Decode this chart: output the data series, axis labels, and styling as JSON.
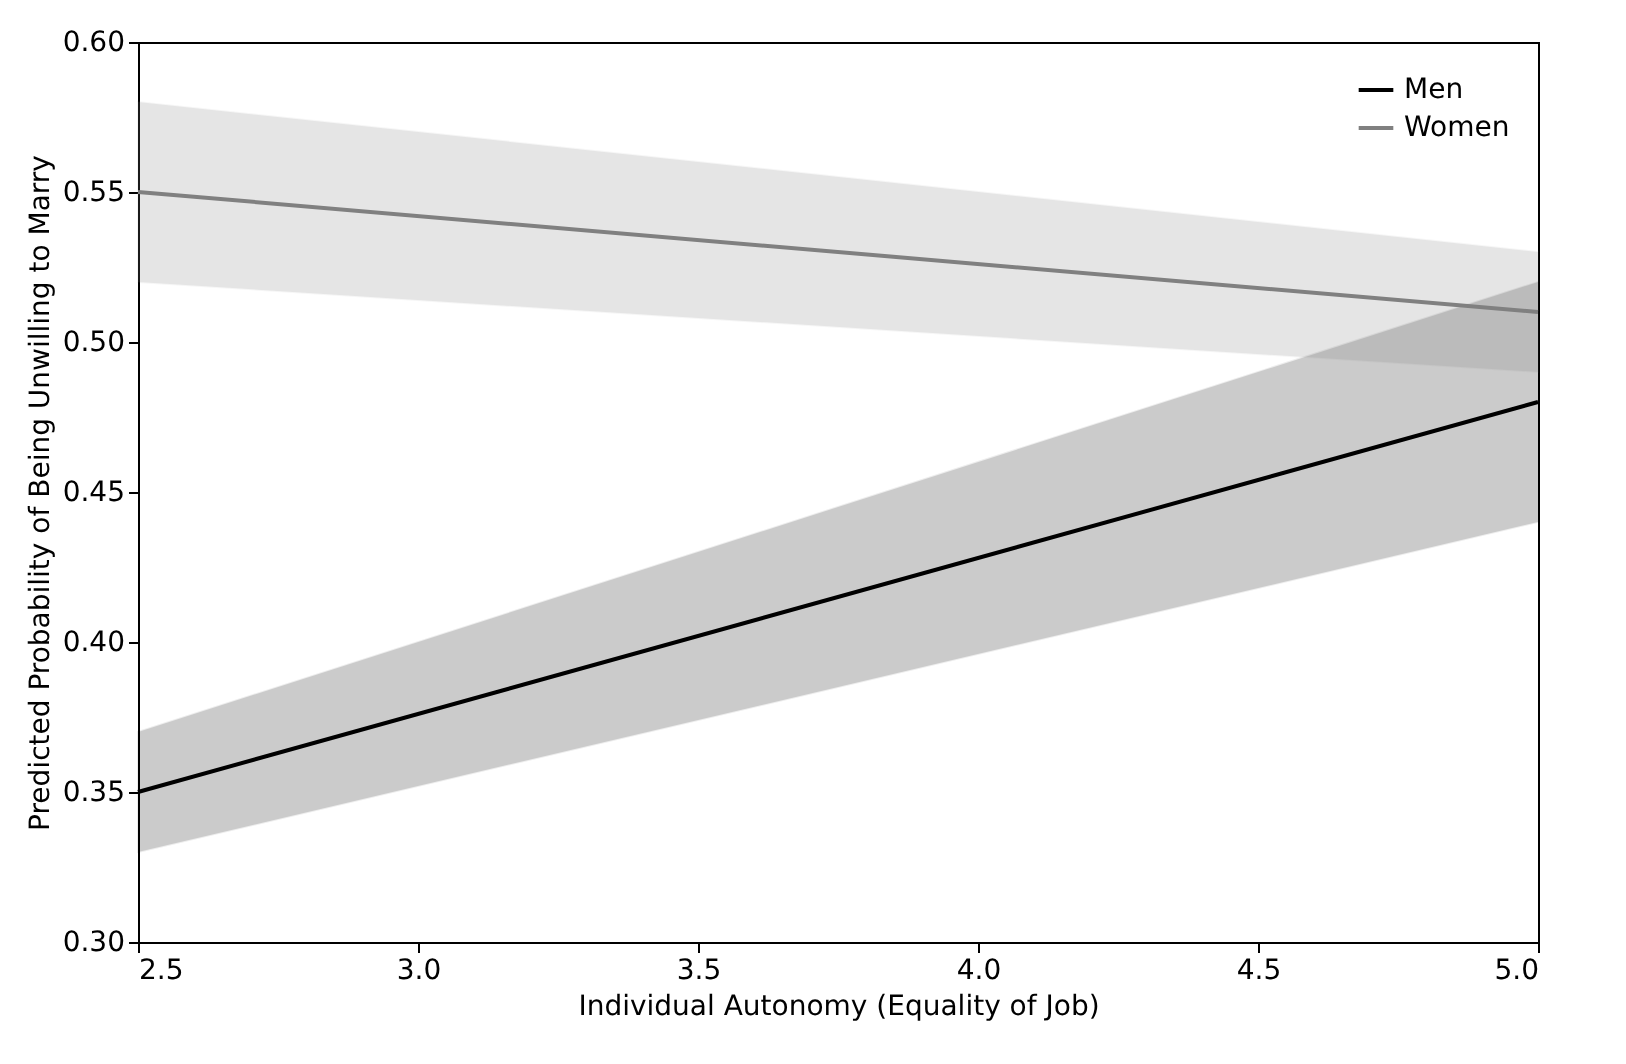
{
  "chart_data": {
    "type": "line",
    "xlabel": "Individual Autonomy (Equality of Job)",
    "ylabel": "Predicted Probability of Being Unwilling to Marry",
    "x": [
      2.5,
      5.0
    ],
    "series": [
      {
        "name": "Men",
        "color": "#000000",
        "values": [
          0.35,
          0.48
        ],
        "lower": [
          0.33,
          0.44
        ],
        "upper": [
          0.37,
          0.52
        ]
      },
      {
        "name": "Women",
        "color": "#808080",
        "values": [
          0.55,
          0.51
        ],
        "lower": [
          0.52,
          0.49
        ],
        "upper": [
          0.58,
          0.53
        ]
      }
    ],
    "xlim": [
      2.5,
      5.0
    ],
    "ylim": [
      0.3,
      0.6
    ],
    "xticks": [
      {
        "value": 2.5,
        "label": "2.5"
      },
      {
        "value": 3,
        "label": "3.0"
      },
      {
        "value": 3.5,
        "label": "3.5"
      },
      {
        "value": 4,
        "label": "4.0"
      },
      {
        "value": 4.5,
        "label": "4.5"
      },
      {
        "value": 5,
        "label": "5.0"
      }
    ],
    "yticks": [
      {
        "value": 0.3,
        "label": "0.30"
      },
      {
        "value": 0.35,
        "label": "0.35"
      },
      {
        "value": 0.4,
        "label": "0.40"
      },
      {
        "value": 0.45,
        "label": "0.45"
      },
      {
        "value": 0.5,
        "label": "0.50"
      },
      {
        "value": 0.55,
        "label": "0.55"
      },
      {
        "value": 0.6,
        "label": "0.60"
      }
    ],
    "grid": false,
    "legend": "top right",
    "line_style": "solid",
    "marker": "none"
  }
}
